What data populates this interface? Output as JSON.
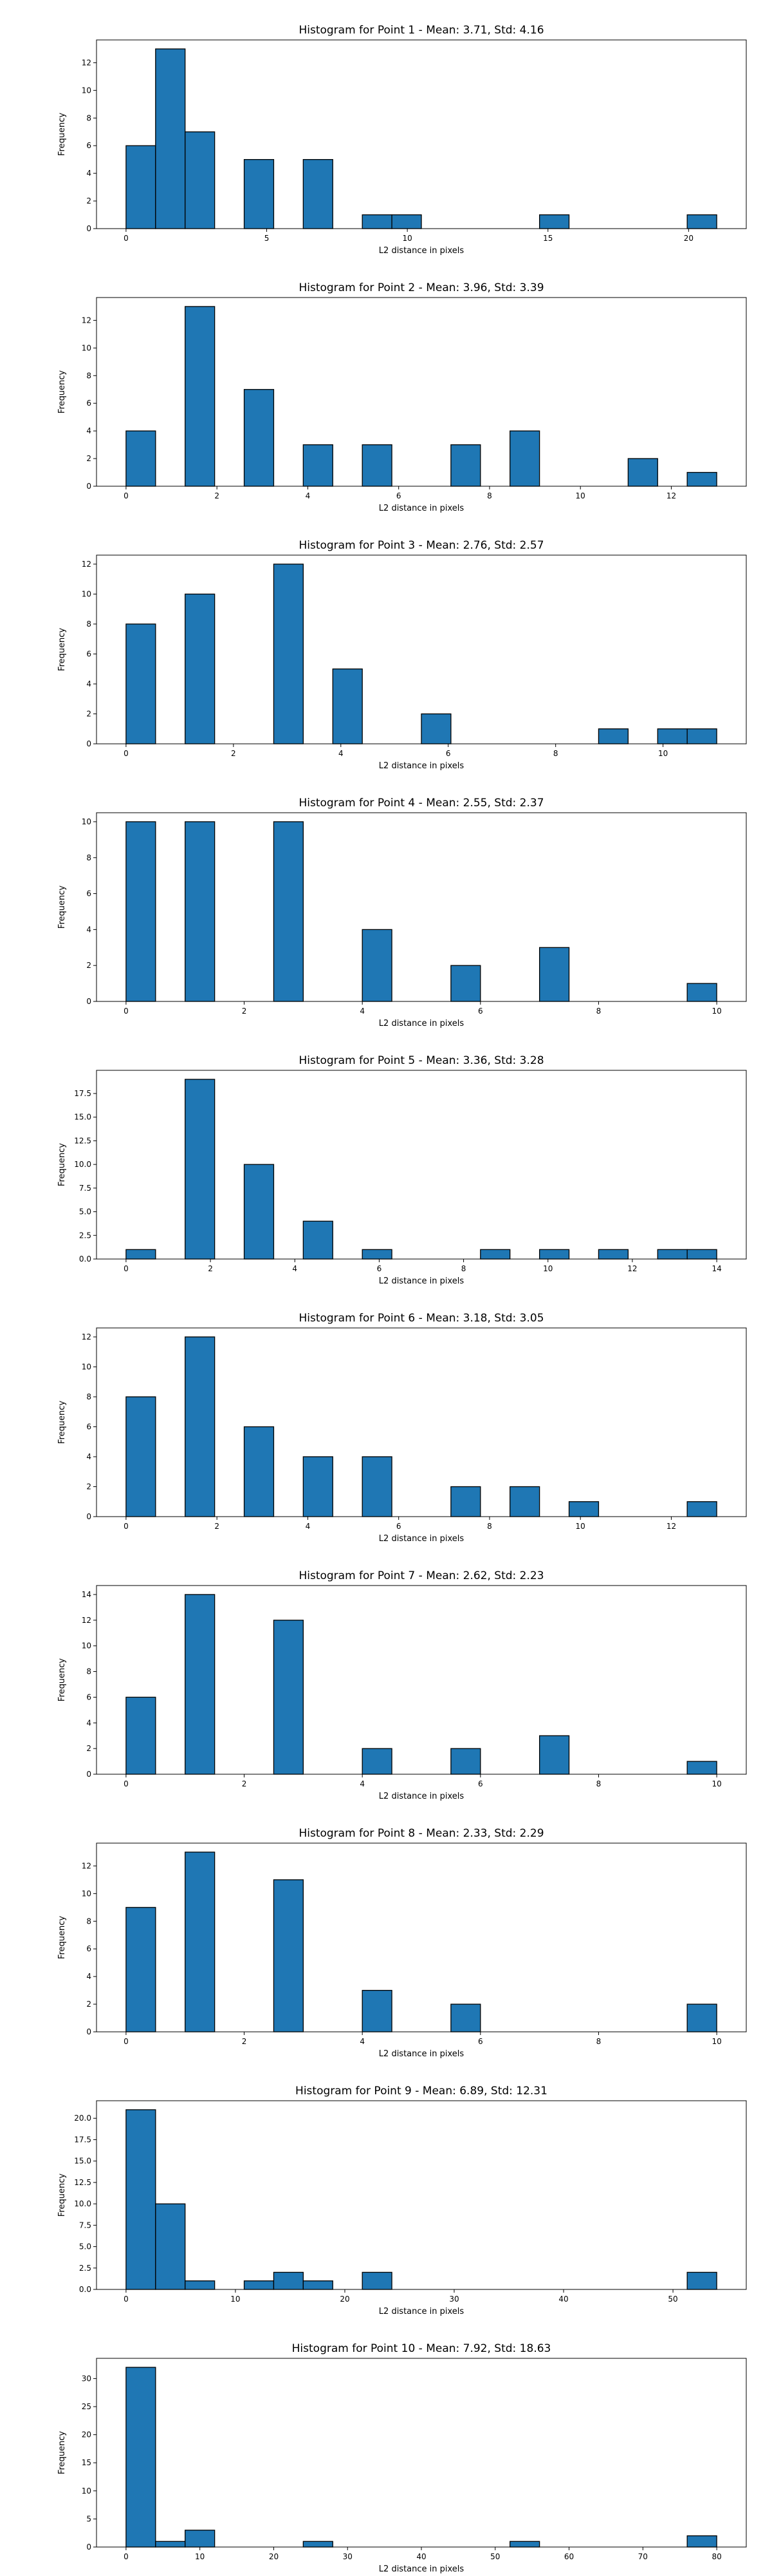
{
  "figure": {
    "bar_color": "#1f77b4",
    "bar_edge_color": "#000000"
  },
  "chart_data": [
    {
      "type": "bar",
      "title": "Histogram for Point 1 - Mean: 3.71, Std: 4.16",
      "xlabel": "L2 distance in pixels",
      "ylabel": "Frequency",
      "xlim": [
        -1.05,
        22.05
      ],
      "ylim": [
        0,
        13.65
      ],
      "xticks": [
        0,
        5,
        10,
        15,
        20
      ],
      "yticks": [
        0,
        2,
        4,
        6,
        8,
        10,
        12
      ],
      "bin_edges": [
        0,
        1.05,
        2.1,
        3.15,
        4.2,
        5.25,
        6.3,
        7.35,
        8.4,
        9.45,
        10.5,
        11.55,
        12.6,
        13.65,
        14.7,
        15.75,
        16.8,
        17.85,
        18.9,
        19.95,
        21
      ],
      "values": [
        6,
        13,
        7,
        0,
        5,
        0,
        5,
        0,
        1,
        1,
        0,
        0,
        0,
        0,
        1,
        0,
        0,
        0,
        0,
        1
      ]
    },
    {
      "type": "bar",
      "title": "Histogram for Point 2 - Mean: 3.96, Std: 3.39",
      "xlabel": "L2 distance in pixels",
      "ylabel": "Frequency",
      "xlim": [
        -0.65,
        13.65
      ],
      "ylim": [
        0,
        13.65
      ],
      "xticks": [
        0,
        2,
        4,
        6,
        8,
        10,
        12
      ],
      "yticks": [
        0,
        2,
        4,
        6,
        8,
        10,
        12
      ],
      "bin_edges": [
        0,
        0.65,
        1.3,
        1.95,
        2.6,
        3.25,
        3.9,
        4.55,
        5.2,
        5.85,
        6.5,
        7.15,
        7.8,
        8.45,
        9.1,
        9.75,
        10.4,
        11.05,
        11.7,
        12.35,
        13
      ],
      "values": [
        4,
        0,
        13,
        0,
        7,
        0,
        3,
        0,
        3,
        0,
        0,
        3,
        0,
        4,
        0,
        0,
        0,
        2,
        0,
        1
      ]
    },
    {
      "type": "bar",
      "title": "Histogram for Point 3 - Mean: 2.76, Std: 2.57",
      "xlabel": "L2 distance in pixels",
      "ylabel": "Frequency",
      "xlim": [
        -0.55,
        11.55
      ],
      "ylim": [
        0,
        12.6
      ],
      "xticks": [
        0,
        2,
        4,
        6,
        8,
        10
      ],
      "yticks": [
        0,
        2,
        4,
        6,
        8,
        10,
        12
      ],
      "bin_edges": [
        0,
        0.55,
        1.1,
        1.65,
        2.2,
        2.75,
        3.3,
        3.85,
        4.4,
        4.95,
        5.5,
        6.05,
        6.6,
        7.15,
        7.7,
        8.25,
        8.8,
        9.35,
        9.9,
        10.45,
        11
      ],
      "values": [
        8,
        0,
        10,
        0,
        0,
        12,
        0,
        5,
        0,
        0,
        2,
        0,
        0,
        0,
        0,
        0,
        1,
        0,
        1,
        1
      ]
    },
    {
      "type": "bar",
      "title": "Histogram for Point 4 - Mean: 2.55, Std: 2.37",
      "xlabel": "L2 distance in pixels",
      "ylabel": "Frequency",
      "xlim": [
        -0.5,
        10.5
      ],
      "ylim": [
        0,
        10.5
      ],
      "xticks": [
        0,
        2,
        4,
        6,
        8,
        10
      ],
      "yticks": [
        0,
        2,
        4,
        6,
        8,
        10
      ],
      "bin_edges": [
        0,
        0.5,
        1,
        1.5,
        2,
        2.5,
        3,
        3.5,
        4,
        4.5,
        5,
        5.5,
        6,
        6.5,
        7,
        7.5,
        8,
        8.5,
        9,
        9.5,
        10
      ],
      "values": [
        10,
        0,
        10,
        0,
        0,
        10,
        0,
        0,
        4,
        0,
        0,
        2,
        0,
        0,
        3,
        0,
        0,
        0,
        0,
        1
      ]
    },
    {
      "type": "bar",
      "title": "Histogram for Point 5 - Mean: 3.36, Std: 3.28",
      "xlabel": "L2 distance in pixels",
      "ylabel": "Frequency",
      "xlim": [
        -0.7,
        14.7
      ],
      "ylim": [
        0,
        19.95
      ],
      "xticks": [
        0,
        2,
        4,
        6,
        8,
        10,
        12,
        14
      ],
      "yticks": [
        0,
        2.5,
        5.0,
        7.5,
        10.0,
        12.5,
        15.0,
        17.5
      ],
      "ytick_labels": [
        "0.0",
        "2.5",
        "5.0",
        "7.5",
        "10.0",
        "12.5",
        "15.0",
        "17.5"
      ],
      "bin_edges": [
        0,
        0.7,
        1.4,
        2.1,
        2.8,
        3.5,
        4.2,
        4.9,
        5.6,
        6.3,
        7,
        7.7,
        8.4,
        9.1,
        9.8,
        10.5,
        11.2,
        11.9,
        12.6,
        13.3,
        14
      ],
      "values": [
        1,
        0,
        19,
        0,
        10,
        0,
        4,
        0,
        1,
        0,
        0,
        0,
        1,
        0,
        1,
        0,
        1,
        0,
        1,
        1
      ]
    },
    {
      "type": "bar",
      "title": "Histogram for Point 6 - Mean: 3.18, Std: 3.05",
      "xlabel": "L2 distance in pixels",
      "ylabel": "Frequency",
      "xlim": [
        -0.65,
        13.65
      ],
      "ylim": [
        0,
        12.6
      ],
      "xticks": [
        0,
        2,
        4,
        6,
        8,
        10,
        12
      ],
      "yticks": [
        0,
        2,
        4,
        6,
        8,
        10,
        12
      ],
      "bin_edges": [
        0,
        0.65,
        1.3,
        1.95,
        2.6,
        3.25,
        3.9,
        4.55,
        5.2,
        5.85,
        6.5,
        7.15,
        7.8,
        8.45,
        9.1,
        9.75,
        10.4,
        11.05,
        11.7,
        12.35,
        13
      ],
      "values": [
        8,
        0,
        12,
        0,
        6,
        0,
        4,
        0,
        4,
        0,
        0,
        2,
        0,
        2,
        0,
        1,
        0,
        0,
        0,
        1
      ]
    },
    {
      "type": "bar",
      "title": "Histogram for Point 7 - Mean: 2.62, Std: 2.23",
      "xlabel": "L2 distance in pixels",
      "ylabel": "Frequency",
      "xlim": [
        -0.5,
        10.5
      ],
      "ylim": [
        0,
        14.7
      ],
      "xticks": [
        0,
        2,
        4,
        6,
        8,
        10
      ],
      "yticks": [
        0,
        2,
        4,
        6,
        8,
        10,
        12,
        14
      ],
      "bin_edges": [
        0,
        0.5,
        1,
        1.5,
        2,
        2.5,
        3,
        3.5,
        4,
        4.5,
        5,
        5.5,
        6,
        6.5,
        7,
        7.5,
        8,
        8.5,
        9,
        9.5,
        10
      ],
      "values": [
        6,
        0,
        14,
        0,
        0,
        12,
        0,
        0,
        2,
        0,
        0,
        2,
        0,
        0,
        3,
        0,
        0,
        0,
        0,
        1
      ]
    },
    {
      "type": "bar",
      "title": "Histogram for Point 8 - Mean: 2.33, Std: 2.29",
      "xlabel": "L2 distance in pixels",
      "ylabel": "Frequency",
      "xlim": [
        -0.5,
        10.5
      ],
      "ylim": [
        0,
        13.65
      ],
      "xticks": [
        0,
        2,
        4,
        6,
        8,
        10
      ],
      "yticks": [
        0,
        2,
        4,
        6,
        8,
        10,
        12
      ],
      "bin_edges": [
        0,
        0.5,
        1,
        1.5,
        2,
        2.5,
        3,
        3.5,
        4,
        4.5,
        5,
        5.5,
        6,
        6.5,
        7,
        7.5,
        8,
        8.5,
        9,
        9.5,
        10
      ],
      "values": [
        9,
        0,
        13,
        0,
        0,
        11,
        0,
        0,
        3,
        0,
        0,
        2,
        0,
        0,
        0,
        0,
        0,
        0,
        0,
        2
      ]
    },
    {
      "type": "bar",
      "title": "Histogram for Point 9 - Mean: 6.89, Std: 12.31",
      "xlabel": "L2 distance in pixels",
      "ylabel": "Frequency",
      "xlim": [
        -2.7,
        56.7
      ],
      "ylim": [
        0,
        22.05
      ],
      "xticks": [
        0,
        10,
        20,
        30,
        40,
        50
      ],
      "yticks": [
        0,
        2.5,
        5.0,
        7.5,
        10.0,
        12.5,
        15.0,
        17.5,
        20.0
      ],
      "ytick_labels": [
        "0.0",
        "2.5",
        "5.0",
        "7.5",
        "10.0",
        "12.5",
        "15.0",
        "17.5",
        "20.0"
      ],
      "bin_edges": [
        0,
        2.7,
        5.4,
        8.1,
        10.8,
        13.5,
        16.2,
        18.9,
        21.6,
        24.3,
        27,
        29.7,
        32.4,
        35.1,
        37.8,
        40.5,
        43.2,
        45.9,
        48.6,
        51.3,
        54
      ],
      "values": [
        21,
        10,
        1,
        0,
        1,
        2,
        1,
        0,
        2,
        0,
        0,
        0,
        0,
        0,
        0,
        0,
        0,
        0,
        0,
        2
      ]
    },
    {
      "type": "bar",
      "title": "Histogram for Point 10 - Mean: 7.92, Std: 18.63",
      "xlabel": "L2 distance in pixels",
      "ylabel": "Frequency",
      "xlim": [
        -4,
        84
      ],
      "ylim": [
        0,
        33.6
      ],
      "xticks": [
        0,
        10,
        20,
        30,
        40,
        50,
        60,
        70,
        80
      ],
      "yticks": [
        0,
        5,
        10,
        15,
        20,
        25,
        30
      ],
      "bin_edges": [
        0,
        4,
        8,
        12,
        16,
        20,
        24,
        28,
        32,
        36,
        40,
        44,
        48,
        52,
        56,
        60,
        64,
        68,
        72,
        76,
        80
      ],
      "values": [
        32,
        1,
        3,
        0,
        0,
        0,
        1,
        0,
        0,
        0,
        0,
        0,
        0,
        1,
        0,
        0,
        0,
        0,
        0,
        2
      ]
    }
  ]
}
